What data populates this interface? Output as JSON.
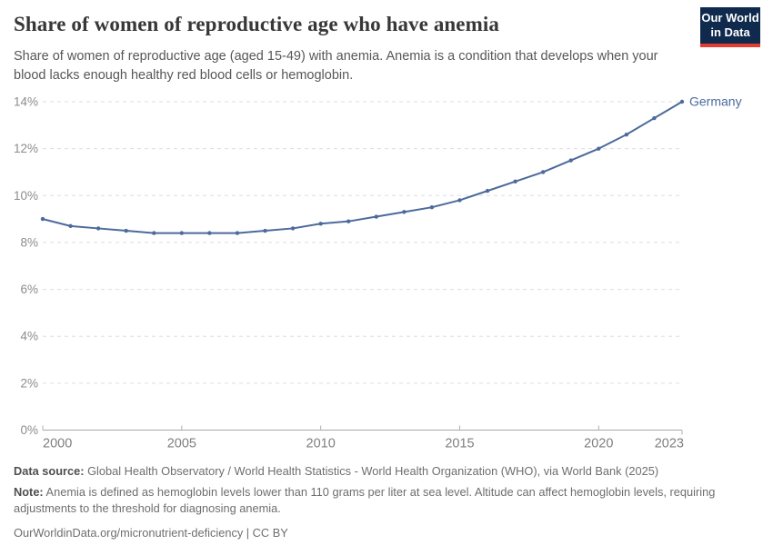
{
  "header": {
    "title": "Share of women of reproductive age who have anemia",
    "subtitle": "Share of women of reproductive age (aged 15-49) with anemia. Anemia is a condition that develops when your blood lacks enough healthy red blood cells or hemoglobin.",
    "logo": {
      "line1": "Our World",
      "line2": "in Data"
    }
  },
  "chart_data": {
    "type": "line",
    "title": "Share of women of reproductive age who have anemia",
    "xlabel": "",
    "ylabel": "",
    "xlim": [
      2000,
      2023
    ],
    "ylim": [
      0,
      14
    ],
    "grid": true,
    "legend_position": "end-of-line-label",
    "x_ticks": [
      2000,
      2005,
      2010,
      2015,
      2020,
      2023
    ],
    "x_tick_labels": [
      "2000",
      "2005",
      "2010",
      "2015",
      "2020",
      "2023"
    ],
    "y_ticks": [
      0,
      2,
      4,
      6,
      8,
      10,
      12,
      14
    ],
    "y_tick_labels": [
      "0%",
      "2%",
      "4%",
      "6%",
      "8%",
      "10%",
      "12%",
      "14%"
    ],
    "series": [
      {
        "name": "Germany",
        "color": "#4c6a9c",
        "x": [
          2000,
          2001,
          2002,
          2003,
          2004,
          2005,
          2006,
          2007,
          2008,
          2009,
          2010,
          2011,
          2012,
          2013,
          2014,
          2015,
          2016,
          2017,
          2018,
          2019,
          2020,
          2021,
          2022,
          2023
        ],
        "values": [
          9.0,
          8.7,
          8.6,
          8.5,
          8.4,
          8.4,
          8.4,
          8.4,
          8.5,
          8.6,
          8.8,
          8.9,
          9.1,
          9.3,
          9.5,
          9.8,
          10.2,
          10.6,
          11.0,
          11.5,
          12.0,
          12.6,
          13.3,
          14.0
        ]
      }
    ]
  },
  "footer": {
    "data_source_label": "Data source:",
    "data_source_text": " Global Health Observatory / World Health Statistics - World Health Organization (WHO), via World Bank (2025)",
    "note_label": "Note:",
    "note_text": " Anemia is defined as hemoglobin levels lower than 110 grams per liter at sea level. Altitude can affect hemoglobin levels, requiring adjustments to the threshold for diagnosing anemia.",
    "citation": "OurWorldinData.org/micronutrient-deficiency | CC BY"
  },
  "colors": {
    "line": "#4c6a9c",
    "grid": "#dedede",
    "axis": "#a8a8a8",
    "tick": "#b0b0b0",
    "logo_bg": "#102a4e",
    "logo_stripe": "#e23d30"
  }
}
